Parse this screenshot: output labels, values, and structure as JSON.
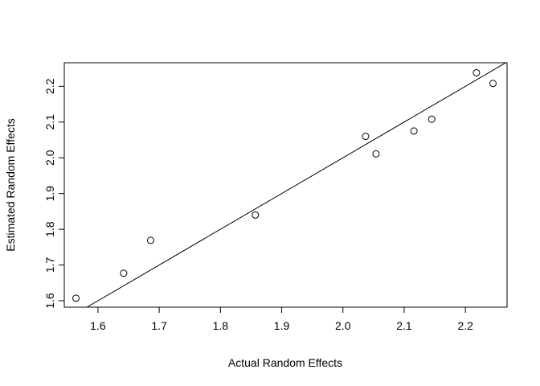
{
  "chart_data": {
    "type": "scatter",
    "title": "",
    "xlabel": "Actual Random Effects",
    "ylabel": "Estimated Random Effects",
    "xlim": [
      1.545,
      2.268
    ],
    "ylim": [
      1.582,
      2.266
    ],
    "x_ticks": [
      "1.6",
      "1.7",
      "1.8",
      "1.9",
      "2.0",
      "2.1",
      "2.2"
    ],
    "y_ticks": [
      "1.6",
      "1.7",
      "1.8",
      "1.9",
      "2.0",
      "2.1",
      "2.2"
    ],
    "grid": false,
    "legend": "none",
    "points": [
      {
        "x": 1.564,
        "y": 1.607
      },
      {
        "x": 1.642,
        "y": 1.677
      },
      {
        "x": 1.686,
        "y": 1.769
      },
      {
        "x": 1.857,
        "y": 1.84
      },
      {
        "x": 2.037,
        "y": 2.06
      },
      {
        "x": 2.054,
        "y": 2.011
      },
      {
        "x": 2.116,
        "y": 2.075
      },
      {
        "x": 2.145,
        "y": 2.108
      },
      {
        "x": 2.218,
        "y": 2.238
      },
      {
        "x": 2.245,
        "y": 2.208
      }
    ],
    "reference_line": {
      "intercept": 0,
      "slope": 1
    },
    "colors": {
      "points": "#000000",
      "line": "#000000",
      "frame": "#000000"
    }
  }
}
